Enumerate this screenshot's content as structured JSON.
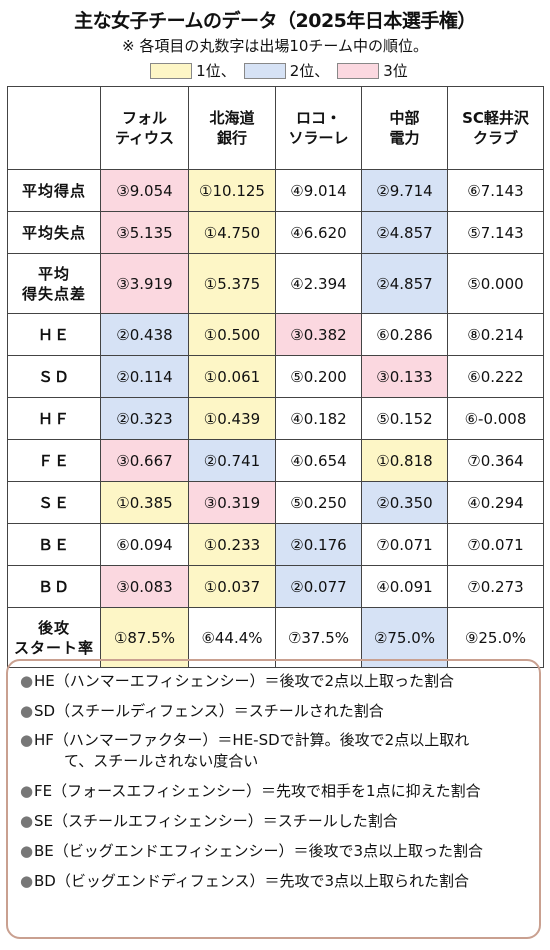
{
  "title": "主な女子チームのデータ（2025年日本選手権）",
  "note": "※ 各項目の丸数字は出場10チーム中の順位。",
  "legend": [
    {
      "label": "1位、",
      "color": "#fdf6c6"
    },
    {
      "label": "2位、",
      "color": "#d6e2f5"
    },
    {
      "label": "3位",
      "color": "#fbd8e0"
    }
  ],
  "teams": [
    "フォル\nティウス",
    "北海道\n銀行",
    "ロコ・\nソラーレ",
    "中部\n電力",
    "SC軽井沢\nクラブ"
  ],
  "rows": [
    {
      "label": "平均得点",
      "cells": [
        {
          "v": "③9.054",
          "bg": "p"
        },
        {
          "v": "①10.125",
          "bg": "y"
        },
        {
          "v": "④9.014",
          "bg": ""
        },
        {
          "v": "②9.714",
          "bg": "b"
        },
        {
          "v": "⑥7.143",
          "bg": ""
        }
      ]
    },
    {
      "label": "平均失点",
      "cells": [
        {
          "v": "③5.135",
          "bg": "p"
        },
        {
          "v": "①4.750",
          "bg": "y"
        },
        {
          "v": "④6.620",
          "bg": ""
        },
        {
          "v": "②4.857",
          "bg": "b"
        },
        {
          "v": "⑤7.143",
          "bg": ""
        }
      ]
    },
    {
      "label": "平均\n得失点差",
      "tall": true,
      "cells": [
        {
          "v": "③3.919",
          "bg": "p"
        },
        {
          "v": "①5.375",
          "bg": "y"
        },
        {
          "v": "④2.394",
          "bg": ""
        },
        {
          "v": "②4.857",
          "bg": "b"
        },
        {
          "v": "⑤0.000",
          "bg": ""
        }
      ]
    },
    {
      "label": "ＨＥ",
      "cells": [
        {
          "v": "②0.438",
          "bg": "b"
        },
        {
          "v": "①0.500",
          "bg": "y"
        },
        {
          "v": "③0.382",
          "bg": "p"
        },
        {
          "v": "⑥0.286",
          "bg": ""
        },
        {
          "v": "⑧0.214",
          "bg": ""
        }
      ]
    },
    {
      "label": "ＳＤ",
      "cells": [
        {
          "v": "②0.114",
          "bg": "b"
        },
        {
          "v": "①0.061",
          "bg": "y"
        },
        {
          "v": "⑤0.200",
          "bg": ""
        },
        {
          "v": "③0.133",
          "bg": "p"
        },
        {
          "v": "⑥0.222",
          "bg": ""
        }
      ]
    },
    {
      "label": "ＨＦ",
      "cells": [
        {
          "v": "②0.323",
          "bg": "b"
        },
        {
          "v": "①0.439",
          "bg": "y"
        },
        {
          "v": "④0.182",
          "bg": ""
        },
        {
          "v": "⑤0.152",
          "bg": ""
        },
        {
          "v": "⑥-0.008",
          "bg": ""
        }
      ]
    },
    {
      "label": "ＦＥ",
      "cells": [
        {
          "v": "③0.667",
          "bg": "p"
        },
        {
          "v": "②0.741",
          "bg": "b"
        },
        {
          "v": "④0.654",
          "bg": ""
        },
        {
          "v": "①0.818",
          "bg": "y"
        },
        {
          "v": "⑦0.364",
          "bg": ""
        }
      ]
    },
    {
      "label": "ＳＥ",
      "cells": [
        {
          "v": "①0.385",
          "bg": "y"
        },
        {
          "v": "③0.319",
          "bg": "p"
        },
        {
          "v": "⑤0.250",
          "bg": ""
        },
        {
          "v": "②0.350",
          "bg": "b"
        },
        {
          "v": "④0.294",
          "bg": ""
        }
      ]
    },
    {
      "label": "ＢＥ",
      "cells": [
        {
          "v": "⑥0.094",
          "bg": ""
        },
        {
          "v": "①0.233",
          "bg": "y"
        },
        {
          "v": "②0.176",
          "bg": "b"
        },
        {
          "v": "⑦0.071",
          "bg": ""
        },
        {
          "v": "⑦0.071",
          "bg": ""
        }
      ]
    },
    {
      "label": "ＢＤ",
      "cells": [
        {
          "v": "③0.083",
          "bg": "p"
        },
        {
          "v": "①0.037",
          "bg": "y"
        },
        {
          "v": "②0.077",
          "bg": "b"
        },
        {
          "v": "④0.091",
          "bg": ""
        },
        {
          "v": "⑦0.273",
          "bg": ""
        }
      ]
    },
    {
      "label": "後攻\nスタート率",
      "tall": true,
      "cells": [
        {
          "v": "①87.5%",
          "bg": "y"
        },
        {
          "v": "⑥44.4%",
          "bg": ""
        },
        {
          "v": "⑦37.5%",
          "bg": ""
        },
        {
          "v": "②75.0%",
          "bg": "b"
        },
        {
          "v": "⑨25.0%",
          "bg": ""
        }
      ]
    }
  ],
  "definitions": [
    "HE（ハンマーエフィシェンシー）＝後攻で2点以上取った割合",
    "SD（スチールディフェンス）＝スチールされた割合",
    "HF（ハンマーファクター）＝HE-SDで計算。後攻で2点以上取れ\n　　て、スチールされない度合い",
    "FE（フォースエフィシェンシー）＝先攻で相手を1点に抑えた割合",
    "SE（スチールエフィシェンシー）＝スチールした割合",
    "BE（ビッグエンドエフィシェンシー）＝後攻で3点以上取った割合",
    "BD（ビッグエンドディフェンス）＝先攻で3点以上取られた割合"
  ],
  "bullet": "●"
}
